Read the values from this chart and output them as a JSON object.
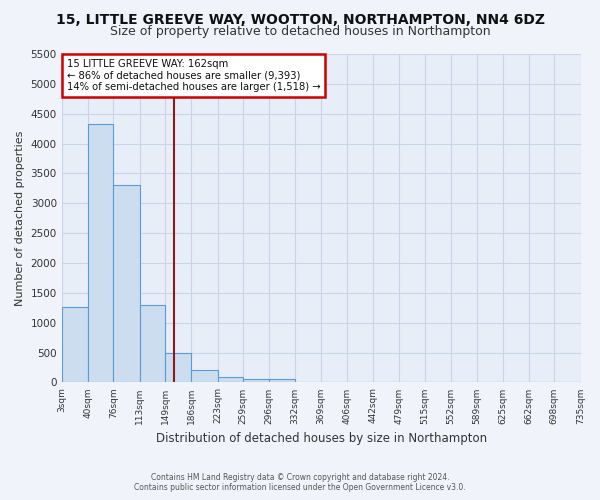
{
  "title": "15, LITTLE GREEVE WAY, WOOTTON, NORTHAMPTON, NN4 6DZ",
  "subtitle": "Size of property relative to detached houses in Northampton",
  "xlabel": "Distribution of detached houses by size in Northampton",
  "ylabel": "Number of detached properties",
  "bin_edges": [
    3,
    40,
    76,
    113,
    149,
    186,
    223,
    259,
    296,
    332,
    369,
    406,
    442,
    479,
    515,
    552,
    589,
    625,
    662,
    698,
    735
  ],
  "bar_heights": [
    1260,
    4330,
    3300,
    1290,
    490,
    215,
    90,
    60,
    55,
    0,
    0,
    0,
    0,
    0,
    0,
    0,
    0,
    0,
    0,
    0
  ],
  "bar_color": "#ccddf0",
  "bar_edge_color": "#5b9bd5",
  "background_color": "#e8eef8",
  "grid_color": "#c8d4e8",
  "fig_bg_color": "#f0f4fa",
  "vline_x": 162,
  "vline_color": "#8b1a1a",
  "annotation_text": "15 LITTLE GREEVE WAY: 162sqm\n← 86% of detached houses are smaller (9,393)\n14% of semi-detached houses are larger (1,518) →",
  "annotation_box_color": "#cc0000",
  "ylim": [
    0,
    5500
  ],
  "yticks": [
    0,
    500,
    1000,
    1500,
    2000,
    2500,
    3000,
    3500,
    4000,
    4500,
    5000,
    5500
  ],
  "footer_line1": "Contains HM Land Registry data © Crown copyright and database right 2024.",
  "footer_line2": "Contains public sector information licensed under the Open Government Licence v3.0.",
  "title_fontsize": 10,
  "subtitle_fontsize": 9,
  "xlabel_fontsize": 8.5,
  "ylabel_fontsize": 8
}
